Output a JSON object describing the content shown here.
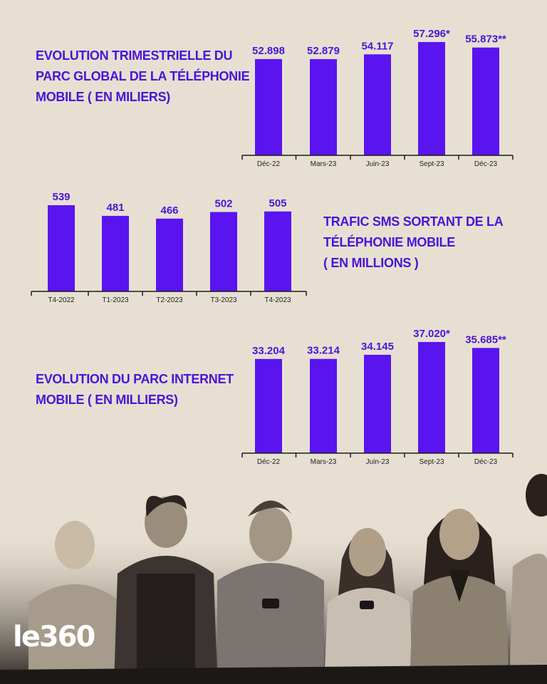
{
  "colors": {
    "bar": "#5a14f0",
    "title": "#4a14d9",
    "axis": "#1b1b1b",
    "background": "#e7e0d2"
  },
  "titles": {
    "parc_mobile": [
      "EVOLUTION TRIMESTRIELLE DU",
      "PARC GLOBAL DE LA TÉLÉPHONIE",
      "MOBILE ( EN MILIERS)"
    ],
    "sms": [
      "TRAFIC SMS SORTANT DE LA",
      "TÉLÉPHONIE MOBILE",
      "( EN MILLIONS )"
    ],
    "internet": [
      "EVOLUTION DU PARC INTERNET",
      "MOBILE ( EN MILLIERS)"
    ]
  },
  "logo": {
    "le": "le",
    "num": "360"
  },
  "chart_data": [
    {
      "type": "bar",
      "categories": [
        "Déc-22",
        "Mars-23",
        "Juin-23",
        "Sept-23",
        "Déc-23"
      ],
      "values": [
        52.898,
        52.879,
        54.117,
        57.296,
        55.873
      ],
      "data_labels": [
        "52.898",
        "52.879",
        "54.117",
        "57.296*",
        "55.873**"
      ],
      "title": "EVOLUTION TRIMESTRIELLE DU PARC GLOBAL DE LA TÉLÉPHONIE MOBILE ( EN MILIERS)",
      "xlabel": "",
      "ylabel": "",
      "grid": false
    },
    {
      "type": "bar",
      "categories": [
        "T4-2022",
        "T1-2023",
        "T2-2023",
        "T3-2023",
        "T4-2023"
      ],
      "values": [
        539,
        481,
        466,
        502,
        505
      ],
      "data_labels": [
        "539",
        "481",
        "466",
        "502",
        "505"
      ],
      "title": "TRAFIC SMS SORTANT DE LA TÉLÉPHONIE MOBILE ( EN MILLIONS )",
      "xlabel": "",
      "ylabel": "",
      "grid": false
    },
    {
      "type": "bar",
      "categories": [
        "Déc-22",
        "Mars-23",
        "Juin-23",
        "Sept-23",
        "Déc-23"
      ],
      "values": [
        33.204,
        33.214,
        34.145,
        37.02,
        35.685
      ],
      "data_labels": [
        "33.204",
        "33.214",
        "34.145",
        "37.020*",
        "35.685**"
      ],
      "title": "EVOLUTION DU PARC INTERNET MOBILE ( EN MILLIERS)",
      "xlabel": "",
      "ylabel": "",
      "grid": false
    }
  ]
}
